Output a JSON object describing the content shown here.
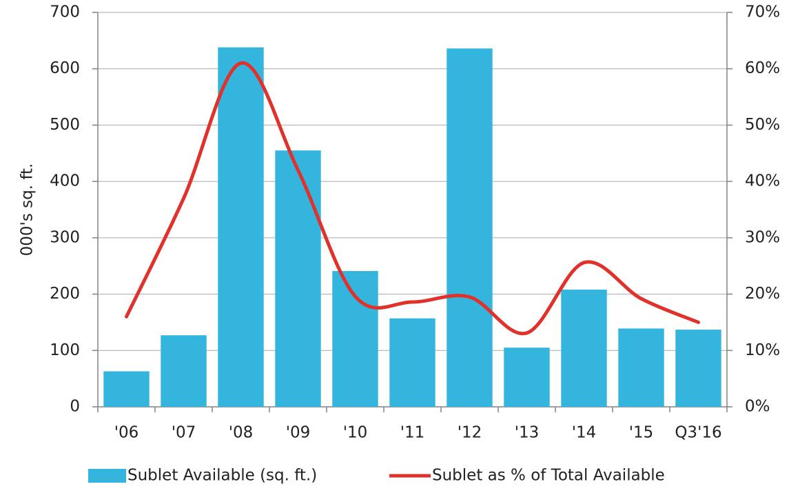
{
  "chart_data": {
    "type": "bar_line",
    "y_label": "000's sq. ft.",
    "categories": [
      "'06",
      "'07",
      "'08",
      "'09",
      "'10",
      "'11",
      "'12",
      "'13",
      "'14",
      "'15",
      "Q3'16"
    ],
    "series": [
      {
        "name": "Sublet Available (sq. ft.)",
        "type": "bar",
        "color": "#33b5de",
        "values": [
          63,
          127,
          638,
          455,
          241,
          157,
          636,
          105,
          208,
          139,
          137
        ]
      },
      {
        "name": "Sublet as % of Total Available",
        "type": "line",
        "axis": "y2",
        "color": "#e0312a",
        "values": [
          16,
          37,
          61,
          42,
          19.6,
          18.6,
          19.5,
          13.1,
          25.6,
          19.2,
          15
        ]
      }
    ],
    "ylim": [
      0,
      700
    ],
    "yticks": [
      0,
      100,
      200,
      300,
      400,
      500,
      600,
      700
    ],
    "y2lim": [
      0,
      70
    ],
    "y2ticks": [
      {
        "value": 0,
        "label": "0%"
      },
      {
        "value": 10,
        "label": "10%"
      },
      {
        "value": 20,
        "label": "20%"
      },
      {
        "value": 30,
        "label": "30%"
      },
      {
        "value": 40,
        "label": "40%"
      },
      {
        "value": 50,
        "label": "50%"
      },
      {
        "value": 60,
        "label": "60%"
      },
      {
        "value": 70,
        "label": "70%"
      }
    ],
    "grid": true,
    "legend": "bottom"
  }
}
